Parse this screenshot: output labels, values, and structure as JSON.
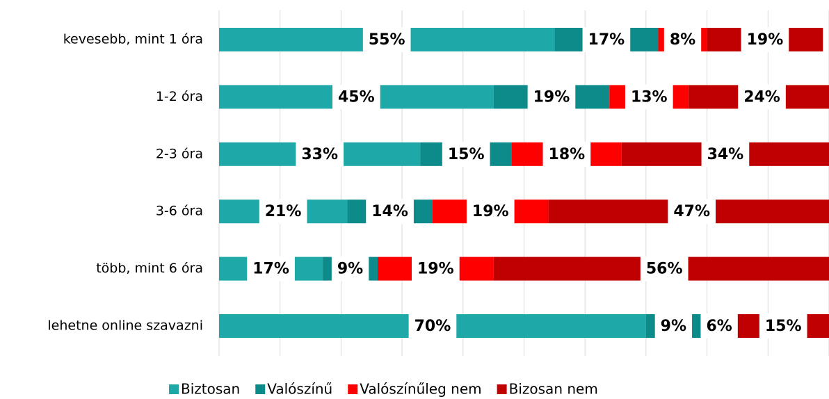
{
  "chart_data": {
    "type": "stacked-bar-horizontal",
    "categories": [
      "kevesebb, mint 1 óra",
      "1-2 óra",
      "2-3 óra",
      "3-6 óra",
      "több, mint 6 óra",
      "lehetne online szavazni"
    ],
    "series": [
      {
        "name": "Biztosan",
        "color": "#1fa8a8",
        "values": [
          55,
          45,
          33,
          21,
          17,
          70
        ],
        "value_labels": [
          "55%",
          "45%",
          "33%",
          "21%",
          "17%",
          "70%"
        ]
      },
      {
        "name": "Valószínű",
        "color": "#0d8a8a",
        "values": [
          17,
          19,
          15,
          14,
          9,
          9
        ],
        "value_labels": [
          "17%",
          "19%",
          "15%",
          "14%",
          "9%",
          "9%"
        ]
      },
      {
        "name": "Valószínűleg nem",
        "color": "#ff0000",
        "values": [
          8,
          13,
          18,
          19,
          19,
          6
        ],
        "value_labels": [
          "8%",
          "13%",
          "18%",
          "19%",
          "19%",
          "6%"
        ]
      },
      {
        "name": "Bizosan nem",
        "color": "#c00000",
        "values": [
          19,
          24,
          34,
          47,
          56,
          15
        ],
        "value_labels": [
          "19%",
          "24%",
          "34%",
          "47%",
          "56%",
          "15%"
        ]
      }
    ],
    "xlim": [
      0,
      100
    ],
    "xticks": [
      0,
      10,
      20,
      30,
      40,
      50,
      60,
      70,
      80,
      90,
      100
    ],
    "grid": true,
    "legend": "bottom"
  }
}
